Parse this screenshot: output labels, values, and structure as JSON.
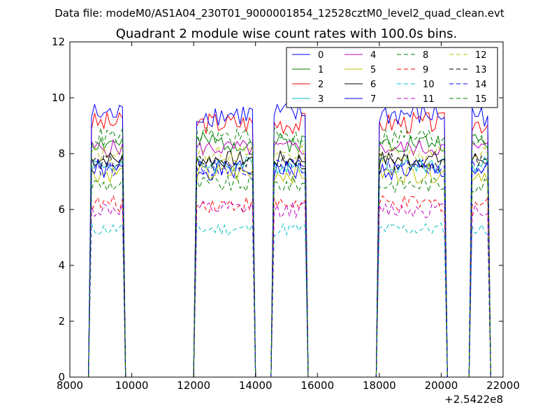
{
  "chart_data": {
    "type": "line",
    "suptitle": "Data file: modeM0/AS1A04_230T01_9000001854_12528cztM0_level2_quad_clean.evt",
    "title": "Quadrant 2 module wise count rates with 100.0s bins.",
    "xlabel": "",
    "ylabel": "",
    "x_offset_label": "+2.5422e8",
    "xlim": [
      8000,
      22000
    ],
    "ylim": [
      0,
      12
    ],
    "xticks": [
      8000,
      10000,
      12000,
      14000,
      16000,
      18000,
      20000,
      22000
    ],
    "yticks": [
      0,
      2,
      4,
      6,
      8,
      10,
      12
    ],
    "xtick_labels": [
      "8000",
      "10000",
      "12000",
      "14000",
      "16000",
      "18000",
      "20000",
      "22000"
    ],
    "ytick_labels": [
      "0",
      "2",
      "4",
      "6",
      "8",
      "10",
      "12"
    ],
    "bin_size_s": 100,
    "segments": [
      {
        "start": 8700,
        "end": 9700
      },
      {
        "start": 12050,
        "end": 13950
      },
      {
        "start": 14550,
        "end": 15650
      },
      {
        "start": 17950,
        "end": 20150
      },
      {
        "start": 20950,
        "end": 21500
      }
    ],
    "legend": {
      "location": "upper right",
      "columns": 4
    },
    "series": [
      {
        "name": "0",
        "color": "#0000ff",
        "dash": "solid",
        "level": 7.4,
        "amp": 0.35,
        "seed": 1
      },
      {
        "name": "1",
        "color": "#008000",
        "dash": "solid",
        "level": 8.4,
        "amp": 0.35,
        "seed": 2
      },
      {
        "name": "2",
        "color": "#ff0000",
        "dash": "solid",
        "level": 9.1,
        "amp": 0.4,
        "seed": 3
      },
      {
        "name": "3",
        "color": "#00bfbf",
        "dash": "solid",
        "level": 7.6,
        "amp": 0.3,
        "seed": 4
      },
      {
        "name": "4",
        "color": "#bf00bf",
        "dash": "solid",
        "level": 8.2,
        "amp": 0.3,
        "seed": 5
      },
      {
        "name": "5",
        "color": "#bfbf00",
        "dash": "solid",
        "level": 7.3,
        "amp": 0.35,
        "seed": 6
      },
      {
        "name": "6",
        "color": "#000000",
        "dash": "solid",
        "level": 7.8,
        "amp": 0.3,
        "seed": 7
      },
      {
        "name": "7",
        "color": "#0000ff",
        "dash": "solid",
        "level": 9.4,
        "amp": 0.45,
        "seed": 8
      },
      {
        "name": "8",
        "color": "#008000",
        "dash": "dashed",
        "level": 6.9,
        "amp": 0.3,
        "seed": 9
      },
      {
        "name": "9",
        "color": "#ff0000",
        "dash": "dashed",
        "level": 6.2,
        "amp": 0.3,
        "seed": 10
      },
      {
        "name": "10",
        "color": "#00bfbf",
        "dash": "dashed",
        "level": 5.3,
        "amp": 0.25,
        "seed": 11
      },
      {
        "name": "11",
        "color": "#bf00bf",
        "dash": "dashed",
        "level": 6.0,
        "amp": 0.3,
        "seed": 12
      },
      {
        "name": "12",
        "color": "#bfbf00",
        "dash": "dashed",
        "level": 8.0,
        "amp": 0.3,
        "seed": 13
      },
      {
        "name": "13",
        "color": "#000000",
        "dash": "dashed",
        "level": 7.7,
        "amp": 0.3,
        "seed": 14
      },
      {
        "name": "14",
        "color": "#0000ff",
        "dash": "dashed",
        "level": 7.5,
        "amp": 0.3,
        "seed": 15
      },
      {
        "name": "15",
        "color": "#008000",
        "dash": "dashed",
        "level": 8.6,
        "amp": 0.35,
        "seed": 16
      }
    ]
  }
}
